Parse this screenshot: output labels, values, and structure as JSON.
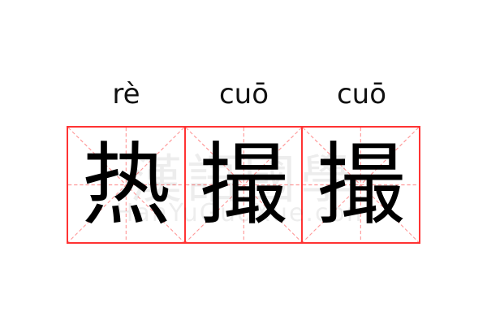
{
  "pinyin": [
    "rè",
    "cuō",
    "cuō"
  ],
  "characters": [
    "热",
    "撮",
    "撮"
  ],
  "watermark": {
    "text": "漢語國學",
    "url": "HanYuGuoXue.com"
  },
  "colors": {
    "grid_border": "#ff3333",
    "guide_lines": "#ff9999",
    "text": "#000000"
  }
}
